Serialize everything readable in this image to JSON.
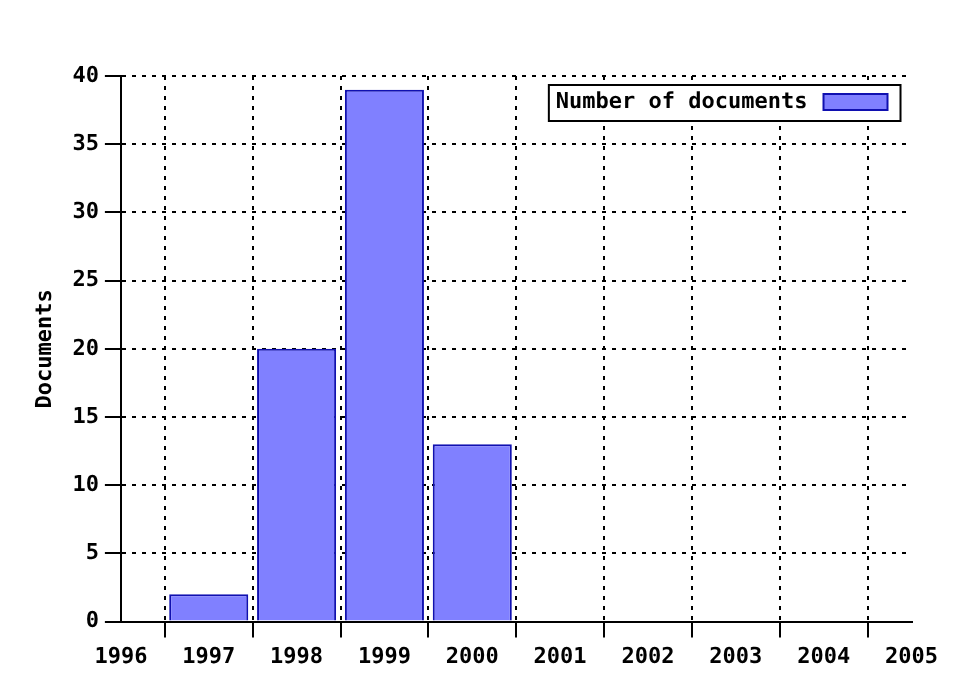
{
  "chart_data": {
    "type": "bar",
    "ylabel": "Documents",
    "x": [
      1997,
      1998,
      1999,
      2000
    ],
    "series": [
      {
        "name": "Number of documents",
        "color": "#8080ff",
        "values": [
          2,
          20,
          39,
          13
        ]
      }
    ],
    "xlim": [
      1996,
      2005
    ],
    "xticks": [
      1996,
      1997,
      1998,
      1999,
      2000,
      2001,
      2002,
      2003,
      2004,
      2005
    ],
    "ylim": [
      0,
      40
    ],
    "yticks": [
      0,
      5,
      10,
      15,
      20,
      25,
      30,
      35,
      40
    ],
    "grid": true,
    "legend": "top right"
  }
}
